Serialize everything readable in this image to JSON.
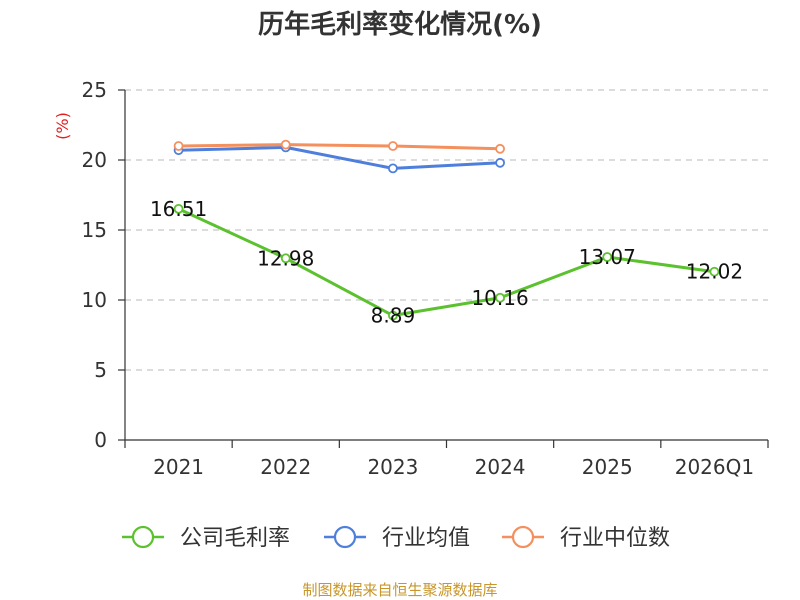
{
  "chart_data": {
    "type": "line",
    "title": "历年毛利率变化情况(%)",
    "ylabel": "(%)",
    "categories": [
      "2021",
      "2022",
      "2023",
      "2024",
      "2025",
      "2026Q1"
    ],
    "ylim": [
      0,
      25
    ],
    "yticks": [
      "0",
      "5",
      "10",
      "15",
      "20",
      "25"
    ],
    "grid": true,
    "legend_position": "bottom",
    "series": [
      {
        "name": "公司毛利率",
        "color": "#5cc12e",
        "values": [
          16.51,
          12.98,
          8.89,
          10.16,
          13.07,
          12.02
        ],
        "labels": [
          "16.51",
          "12.98",
          "8.89",
          "10.16",
          "13.07",
          "12.02"
        ]
      },
      {
        "name": "行业均值",
        "color": "#4f7fdc",
        "values": [
          20.7,
          20.9,
          19.4,
          19.8,
          null,
          null
        ]
      },
      {
        "name": "行业中位数",
        "color": "#f4905e",
        "values": [
          21.0,
          21.1,
          21.0,
          20.8,
          null,
          null
        ]
      }
    ],
    "source": "制图数据来自恒生聚源数据库"
  }
}
